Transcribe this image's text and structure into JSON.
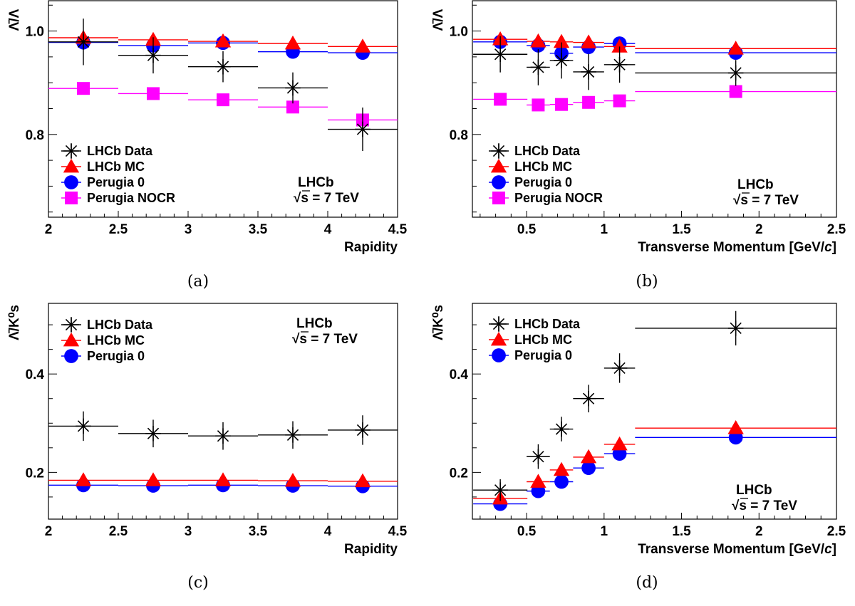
{
  "chart_data": [
    {
      "type": "scatter",
      "panel": "a",
      "caption": "(a)",
      "xlabel": "Rapidity",
      "ylabel": "Λ̄/Λ",
      "xlim": [
        2,
        4.5
      ],
      "ylim": [
        0.64,
        1.06
      ],
      "xticks": [
        "2",
        "2.5",
        "3",
        "3.5",
        "4",
        "4.5"
      ],
      "yticks": [
        "0.8",
        "1.0"
      ],
      "legend": "top-left inside, lower part",
      "annotation": [
        "LHCb",
        "√s = 7 TeV"
      ],
      "series": [
        {
          "name": "LHCb Data",
          "color": "#000000",
          "marker": "star",
          "x": [
            2.25,
            2.75,
            3.25,
            3.75,
            4.25
          ],
          "xerr": [
            0.25,
            0.25,
            0.25,
            0.25,
            0.25
          ],
          "y": [
            0.979,
            0.953,
            0.931,
            0.89,
            0.81
          ],
          "yerr": [
            0.045,
            0.035,
            0.03,
            0.03,
            0.042
          ]
        },
        {
          "name": "LHCb MC",
          "color": "#ff0000",
          "marker": "triangle",
          "x": [
            2.25,
            2.75,
            3.25,
            3.75,
            4.25
          ],
          "xerr": [
            0.25,
            0.25,
            0.25,
            0.25,
            0.25
          ],
          "y": [
            0.987,
            0.983,
            0.98,
            0.976,
            0.97
          ]
        },
        {
          "name": "Perugia 0",
          "color": "#0000ff",
          "marker": "circle",
          "x": [
            2.25,
            2.75,
            3.25,
            3.75,
            4.25
          ],
          "xerr": [
            0.25,
            0.25,
            0.25,
            0.25,
            0.25
          ],
          "y": [
            0.978,
            0.972,
            0.977,
            0.96,
            0.958
          ]
        },
        {
          "name": "Perugia NOCR",
          "color": "#ff00ff",
          "marker": "square",
          "x": [
            2.25,
            2.75,
            3.25,
            3.75,
            4.25
          ],
          "xerr": [
            0.25,
            0.25,
            0.25,
            0.25,
            0.25
          ],
          "y": [
            0.889,
            0.879,
            0.867,
            0.853,
            0.828
          ]
        }
      ]
    },
    {
      "type": "scatter",
      "panel": "b",
      "caption": "(b)",
      "xlabel": "Transverse Momentum [GeV/c]",
      "ylabel": "Λ̄/Λ",
      "xlim": [
        0.15,
        2.5
      ],
      "ylim": [
        0.64,
        1.06
      ],
      "xticks": [
        "0.5",
        "1",
        "1.5",
        "2",
        "2.5"
      ],
      "yticks": [
        "0.8",
        "1.0"
      ],
      "legend": "top-left inside, lower part",
      "annotation": [
        "LHCb",
        "√s = 7 TeV"
      ],
      "series": [
        {
          "name": "LHCb Data",
          "color": "#000000",
          "marker": "star",
          "x": [
            0.33,
            0.575,
            0.725,
            0.9,
            1.1,
            1.85
          ],
          "xerr": [
            0.175,
            0.075,
            0.075,
            0.1,
            0.1,
            0.65
          ],
          "y": [
            0.955,
            0.93,
            0.943,
            0.921,
            0.935,
            0.919
          ],
          "yerr": [
            0.035,
            0.035,
            0.035,
            0.035,
            0.035,
            0.025
          ]
        },
        {
          "name": "LHCb MC",
          "color": "#ff0000",
          "marker": "triangle",
          "x": [
            0.33,
            0.575,
            0.725,
            0.9,
            1.1,
            1.85
          ],
          "xerr": [
            0.175,
            0.075,
            0.075,
            0.1,
            0.1,
            0.65
          ],
          "y": [
            0.984,
            0.98,
            0.979,
            0.978,
            0.97,
            0.966
          ]
        },
        {
          "name": "Perugia 0",
          "color": "#0000ff",
          "marker": "circle",
          "x": [
            0.33,
            0.575,
            0.725,
            0.9,
            1.1,
            1.85
          ],
          "xerr": [
            0.175,
            0.075,
            0.075,
            0.1,
            0.1,
            0.65
          ],
          "y": [
            0.979,
            0.972,
            0.957,
            0.969,
            0.976,
            0.958
          ]
        },
        {
          "name": "Perugia NOCR",
          "color": "#ff00ff",
          "marker": "square",
          "x": [
            0.33,
            0.575,
            0.725,
            0.9,
            1.1,
            1.85
          ],
          "xerr": [
            0.175,
            0.075,
            0.075,
            0.1,
            0.1,
            0.65
          ],
          "y": [
            0.868,
            0.857,
            0.858,
            0.862,
            0.865,
            0.883
          ]
        }
      ]
    },
    {
      "type": "scatter",
      "panel": "c",
      "caption": "(c)",
      "xlabel": "Rapidity",
      "ylabel": "Λ̄/K⁰s",
      "xlim": [
        2,
        4.5
      ],
      "ylim": [
        0.105,
        0.545
      ],
      "xticks": [
        "2",
        "2.5",
        "3",
        "3.5",
        "4",
        "4.5"
      ],
      "yticks": [
        "0.2",
        "0.4"
      ],
      "legend": "top-left",
      "annotation": [
        "LHCb",
        "√s = 7 TeV"
      ],
      "series": [
        {
          "name": "LHCb Data",
          "color": "#000000",
          "marker": "star",
          "x": [
            2.25,
            2.75,
            3.25,
            3.75,
            4.25
          ],
          "xerr": [
            0.25,
            0.25,
            0.25,
            0.25,
            0.25
          ],
          "y": [
            0.294,
            0.279,
            0.274,
            0.276,
            0.286
          ],
          "yerr": [
            0.03,
            0.028,
            0.028,
            0.028,
            0.03
          ]
        },
        {
          "name": "LHCb MC",
          "color": "#ff0000",
          "marker": "triangle",
          "x": [
            2.25,
            2.75,
            3.25,
            3.75,
            4.25
          ],
          "xerr": [
            0.25,
            0.25,
            0.25,
            0.25,
            0.25
          ],
          "y": [
            0.184,
            0.184,
            0.184,
            0.183,
            0.182
          ]
        },
        {
          "name": "Perugia 0",
          "color": "#0000ff",
          "marker": "circle",
          "x": [
            2.25,
            2.75,
            3.25,
            3.75,
            4.25
          ],
          "xerr": [
            0.25,
            0.25,
            0.25,
            0.25,
            0.25
          ],
          "y": [
            0.174,
            0.173,
            0.174,
            0.173,
            0.172
          ]
        }
      ]
    },
    {
      "type": "scatter",
      "panel": "d",
      "caption": "(d)",
      "xlabel": "Transverse Momentum [GeV/c]",
      "ylabel": "Λ̄/K⁰s",
      "xlim": [
        0.15,
        2.5
      ],
      "ylim": [
        0.105,
        0.545
      ],
      "xticks": [
        "0.5",
        "1",
        "1.5",
        "2",
        "2.5"
      ],
      "yticks": [
        "0.2",
        "0.4"
      ],
      "legend": "top-left",
      "annotation": [
        "LHCb",
        "√s = 7 TeV"
      ],
      "series": [
        {
          "name": "LHCb Data",
          "color": "#000000",
          "marker": "star",
          "x": [
            0.33,
            0.575,
            0.725,
            0.9,
            1.1,
            1.85
          ],
          "xerr": [
            0.175,
            0.075,
            0.075,
            0.1,
            0.1,
            0.65
          ],
          "y": [
            0.164,
            0.232,
            0.288,
            0.35,
            0.412,
            0.493
          ],
          "yerr": [
            0.022,
            0.025,
            0.025,
            0.028,
            0.03,
            0.035
          ]
        },
        {
          "name": "LHCb MC",
          "color": "#ff0000",
          "marker": "triangle",
          "x": [
            0.33,
            0.575,
            0.725,
            0.9,
            1.1,
            1.85
          ],
          "xerr": [
            0.175,
            0.075,
            0.075,
            0.1,
            0.1,
            0.65
          ],
          "y": [
            0.147,
            0.181,
            0.205,
            0.231,
            0.257,
            0.29
          ]
        },
        {
          "name": "Perugia 0",
          "color": "#0000ff",
          "marker": "circle",
          "x": [
            0.33,
            0.575,
            0.725,
            0.9,
            1.1,
            1.85
          ],
          "xerr": [
            0.175,
            0.075,
            0.075,
            0.1,
            0.1,
            0.65
          ],
          "y": [
            0.136,
            0.162,
            0.181,
            0.209,
            0.238,
            0.271
          ]
        }
      ]
    }
  ]
}
